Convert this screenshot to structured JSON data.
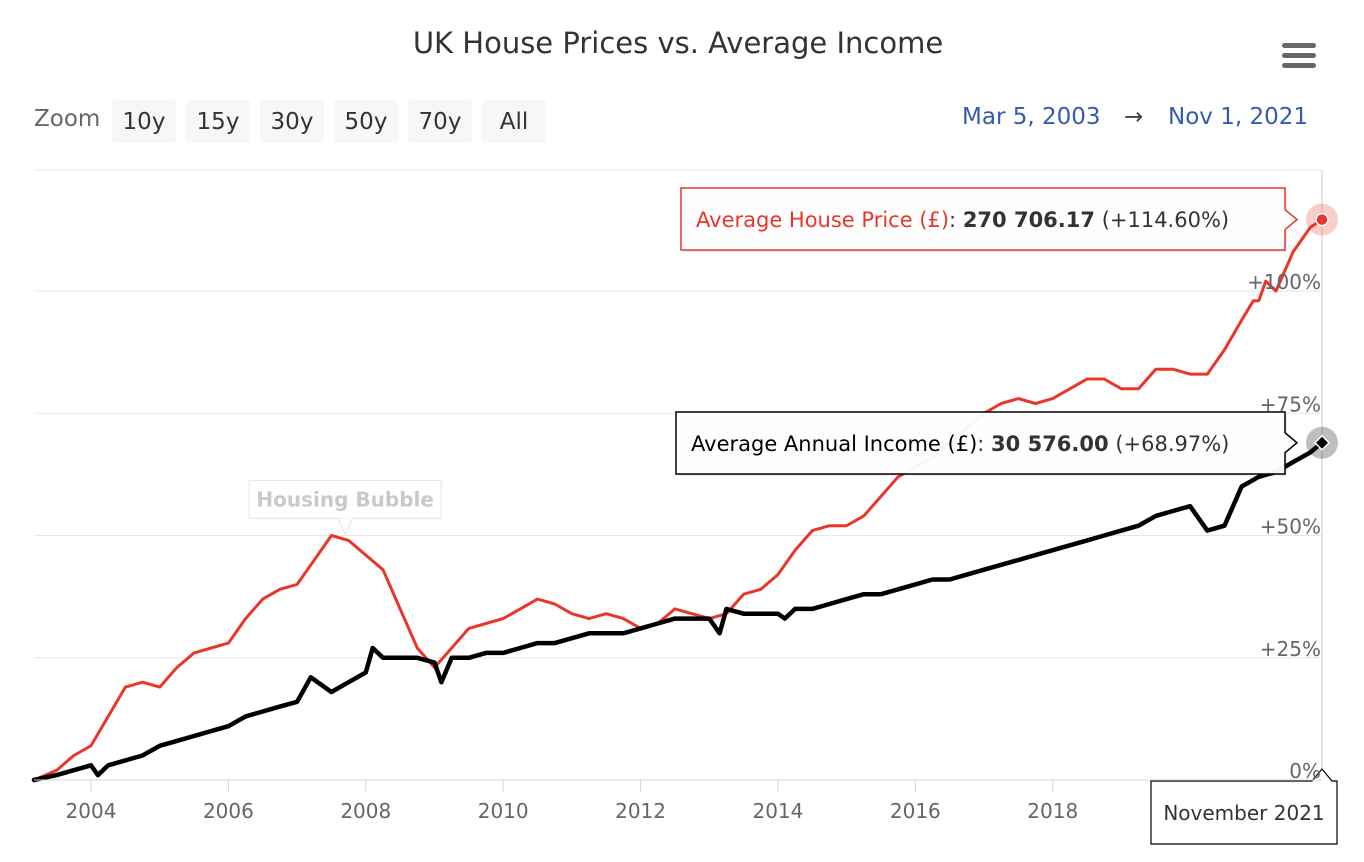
{
  "title": "UK House Prices vs. Average Income",
  "range_selector": {
    "zoom_label": "Zoom",
    "buttons": [
      "10y",
      "15y",
      "30y",
      "50y",
      "70y",
      "All"
    ],
    "from_date": "Mar 5, 2003",
    "arrow": "→",
    "to_date": "Nov 1, 2021"
  },
  "menu": {
    "icon": "hamburger-menu-icon"
  },
  "chart_data": {
    "type": "line",
    "title": "UK House Prices vs. Average Income",
    "xlabel": "",
    "ylabel": "",
    "x_ticks": [
      "2004",
      "2006",
      "2008",
      "2010",
      "2012",
      "2014",
      "2016",
      "2018"
    ],
    "y_ticks": [
      "0%",
      "+25%",
      "+50%",
      "+75%",
      "+100%"
    ],
    "ylim": [
      0,
      125
    ],
    "xlim": [
      2003.17,
      2021.92
    ],
    "annotation": {
      "text": "Housing Bubble",
      "x": 2007.7,
      "series": "Average House Price (£)"
    },
    "tooltip": {
      "date": "November 2021",
      "rows": [
        {
          "label": "Average House Price (£)",
          "value": "270 706.17",
          "change": "(+114.60%)"
        },
        {
          "label": "Average Annual Income (£)",
          "value": "30 576.00",
          "change": "(+68.97%)"
        }
      ]
    },
    "series": [
      {
        "name": "Average House Price (£)",
        "color": "#e8372a",
        "unit": "percent change",
        "x": [
          2003.17,
          2003.5,
          2003.75,
          2004.0,
          2004.25,
          2004.5,
          2004.75,
          2005.0,
          2005.25,
          2005.5,
          2005.75,
          2006.0,
          2006.25,
          2006.5,
          2006.75,
          2007.0,
          2007.25,
          2007.5,
          2007.75,
          2008.0,
          2008.25,
          2008.5,
          2008.75,
          2009.0,
          2009.25,
          2009.5,
          2009.75,
          2010.0,
          2010.25,
          2010.5,
          2010.75,
          2011.0,
          2011.25,
          2011.5,
          2011.75,
          2012.0,
          2012.25,
          2012.5,
          2012.75,
          2013.0,
          2013.25,
          2013.5,
          2013.75,
          2014.0,
          2014.25,
          2014.5,
          2014.75,
          2015.0,
          2015.25,
          2015.5,
          2015.75,
          2016.0,
          2016.25,
          2016.5,
          2016.75,
          2017.0,
          2017.25,
          2017.5,
          2017.75,
          2018.0,
          2018.25,
          2018.5,
          2018.75,
          2019.0,
          2019.25,
          2019.5,
          2019.75,
          2020.0,
          2020.25,
          2020.5,
          2020.75,
          2020.92,
          2021.0,
          2021.1,
          2021.25,
          2021.5,
          2021.75,
          2021.92
        ],
        "values": [
          0,
          2,
          5,
          7,
          13,
          19,
          20,
          19,
          23,
          26,
          27,
          28,
          33,
          37,
          39,
          40,
          45,
          50,
          49,
          46,
          43,
          35,
          27,
          23,
          27,
          31,
          32,
          33,
          35,
          37,
          36,
          34,
          33,
          34,
          33,
          31,
          32,
          35,
          34,
          33,
          34,
          38,
          39,
          42,
          47,
          51,
          52,
          52,
          54,
          58,
          62,
          64,
          66,
          69,
          72,
          75,
          77,
          78,
          77,
          78,
          80,
          82,
          82,
          80,
          80,
          84,
          84,
          83,
          83,
          88,
          94,
          98,
          98,
          102,
          100,
          108,
          113,
          114.6
        ]
      },
      {
        "name": "Average Annual Income (£)",
        "color": "#000000",
        "unit": "percent change",
        "x": [
          2003.17,
          2003.5,
          2003.75,
          2004.0,
          2004.1,
          2004.25,
          2004.5,
          2004.75,
          2005.0,
          2005.25,
          2005.5,
          2005.75,
          2006.0,
          2006.25,
          2006.5,
          2006.75,
          2007.0,
          2007.2,
          2007.5,
          2007.75,
          2008.0,
          2008.1,
          2008.25,
          2008.5,
          2008.75,
          2009.0,
          2009.1,
          2009.25,
          2009.5,
          2009.75,
          2010.0,
          2010.25,
          2010.5,
          2010.75,
          2011.0,
          2011.25,
          2011.5,
          2011.75,
          2012.0,
          2012.25,
          2012.5,
          2012.75,
          2013.0,
          2013.15,
          2013.25,
          2013.5,
          2013.75,
          2014.0,
          2014.1,
          2014.25,
          2014.5,
          2014.75,
          2015.0,
          2015.25,
          2015.5,
          2015.75,
          2016.0,
          2016.25,
          2016.5,
          2016.75,
          2017.0,
          2017.25,
          2017.5,
          2017.75,
          2018.0,
          2018.25,
          2018.5,
          2018.75,
          2019.0,
          2019.25,
          2019.5,
          2019.75,
          2020.0,
          2020.25,
          2020.5,
          2020.75,
          2021.0,
          2021.25,
          2021.5,
          2021.75,
          2021.92
        ],
        "values": [
          0,
          1,
          2,
          3,
          1,
          3,
          4,
          5,
          7,
          8,
          9,
          10,
          11,
          13,
          14,
          15,
          16,
          21,
          18,
          20,
          22,
          27,
          25,
          25,
          25,
          24,
          20,
          25,
          25,
          26,
          26,
          27,
          28,
          28,
          29,
          30,
          30,
          30,
          31,
          32,
          33,
          33,
          33,
          30,
          35,
          34,
          34,
          34,
          33,
          35,
          35,
          36,
          37,
          38,
          38,
          39,
          40,
          41,
          41,
          42,
          43,
          44,
          45,
          46,
          47,
          48,
          49,
          50,
          51,
          52,
          54,
          55,
          56,
          51,
          52,
          60,
          62,
          63,
          65,
          67,
          68.97
        ]
      }
    ]
  }
}
